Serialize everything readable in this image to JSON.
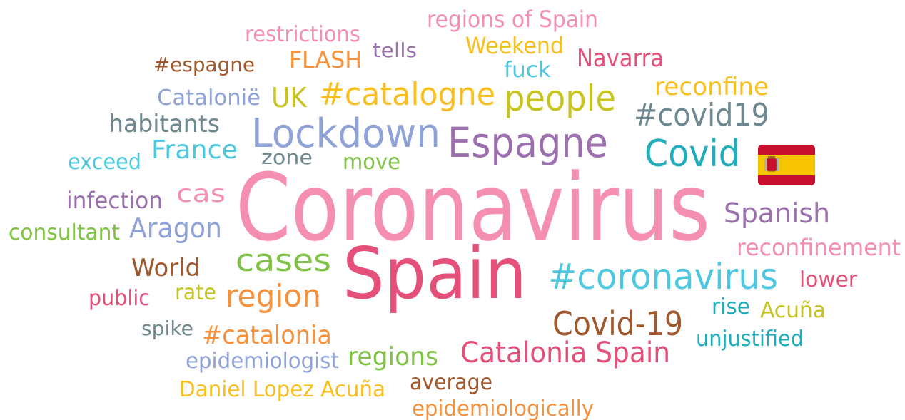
{
  "words": [
    {
      "text": "regions of Spain"
    },
    {
      "text": "restrictions"
    },
    {
      "text": "tells"
    },
    {
      "text": "Weekend"
    },
    {
      "text": "Navarra"
    },
    {
      "text": "#espagne"
    },
    {
      "text": "FLASH"
    },
    {
      "text": "fuck"
    },
    {
      "text": "reconfine"
    },
    {
      "text": "Catalonië"
    },
    {
      "text": "UK"
    },
    {
      "text": "#catalogne"
    },
    {
      "text": "people"
    },
    {
      "text": "#covid19"
    },
    {
      "text": "habitants"
    },
    {
      "text": "Lockdown"
    },
    {
      "text": "Espagne"
    },
    {
      "text": "Covid"
    },
    {
      "text": "exceed"
    },
    {
      "text": "France"
    },
    {
      "text": "zone"
    },
    {
      "text": "move"
    },
    {
      "text": "infection"
    },
    {
      "text": "cas"
    },
    {
      "text": "Coronavirus"
    },
    {
      "text": "Spanish"
    },
    {
      "text": "consultant"
    },
    {
      "text": "Aragon"
    },
    {
      "text": "reconfinement"
    },
    {
      "text": "World"
    },
    {
      "text": "cases"
    },
    {
      "text": "Spain"
    },
    {
      "text": "#coronavirus"
    },
    {
      "text": "lower"
    },
    {
      "text": "public"
    },
    {
      "text": "rate"
    },
    {
      "text": "region"
    },
    {
      "text": "rise"
    },
    {
      "text": "Acuña"
    },
    {
      "text": "Covid-19"
    },
    {
      "text": "spike"
    },
    {
      "text": "#catalonia"
    },
    {
      "text": "unjustified"
    },
    {
      "text": "epidemiologist"
    },
    {
      "text": "regions"
    },
    {
      "text": "Catalonia Spain"
    },
    {
      "text": "average"
    },
    {
      "text": "Daniel Lopez Acuña"
    },
    {
      "text": "epidemiologically"
    }
  ]
}
